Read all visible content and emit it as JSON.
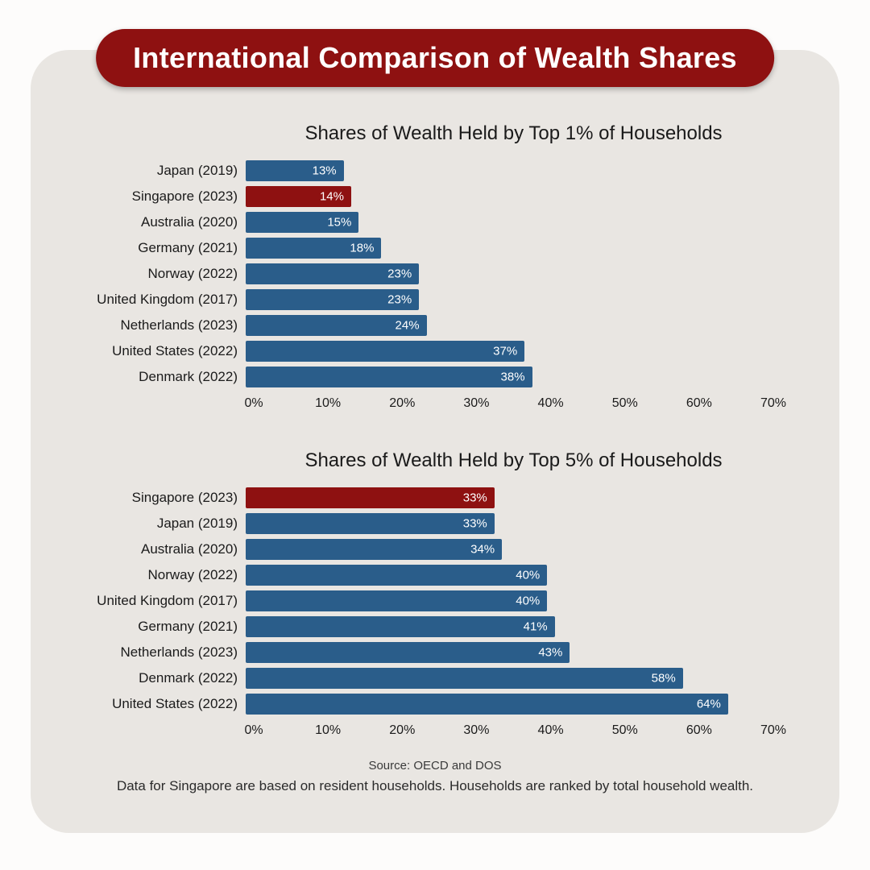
{
  "header": {
    "title": "International Comparison of Wealth Shares"
  },
  "colors": {
    "background": "#e9e6e2",
    "banner": "#8e1111",
    "bar": "#2a5d8a",
    "highlight": "#8e1111",
    "bar_label": "#ffffff"
  },
  "chart_data": [
    {
      "type": "bar",
      "orientation": "horizontal",
      "title": "Shares of Wealth Held by Top 1% of Households",
      "categories": [
        "Japan (2019)",
        "Singapore (2023)",
        "Australia (2020)",
        "Germany (2021)",
        "Norway (2022)",
        "United Kingdom (2017)",
        "Netherlands (2023)",
        "United States (2022)",
        "Denmark (2022)"
      ],
      "values": [
        13,
        14,
        15,
        18,
        23,
        23,
        24,
        37,
        38
      ],
      "value_labels": [
        "13%",
        "14%",
        "15%",
        "18%",
        "23%",
        "23%",
        "24%",
        "37%",
        "38%"
      ],
      "highlight_category": "Singapore (2023)",
      "xlim": [
        0,
        70
      ],
      "xticks": [
        "0%",
        "10%",
        "20%",
        "30%",
        "40%",
        "50%",
        "60%",
        "70%"
      ],
      "grid": false,
      "legend": "none"
    },
    {
      "type": "bar",
      "orientation": "horizontal",
      "title": "Shares of Wealth Held by Top 5% of Households",
      "categories": [
        "Singapore (2023)",
        "Japan (2019)",
        "Australia (2020)",
        "Norway (2022)",
        "United Kingdom (2017)",
        "Germany (2021)",
        "Netherlands (2023)",
        "Denmark (2022)",
        "United States (2022)"
      ],
      "values": [
        33,
        33,
        34,
        40,
        40,
        41,
        43,
        58,
        64
      ],
      "value_labels": [
        "33%",
        "33%",
        "34%",
        "40%",
        "40%",
        "41%",
        "43%",
        "58%",
        "64%"
      ],
      "highlight_category": "Singapore (2023)",
      "xlim": [
        0,
        70
      ],
      "xticks": [
        "0%",
        "10%",
        "20%",
        "30%",
        "40%",
        "50%",
        "60%",
        "70%"
      ],
      "grid": false,
      "legend": "none"
    }
  ],
  "footer": {
    "source": "Source: OECD and DOS",
    "note": "Data for Singapore are based on resident households. Households are ranked by total household wealth."
  }
}
